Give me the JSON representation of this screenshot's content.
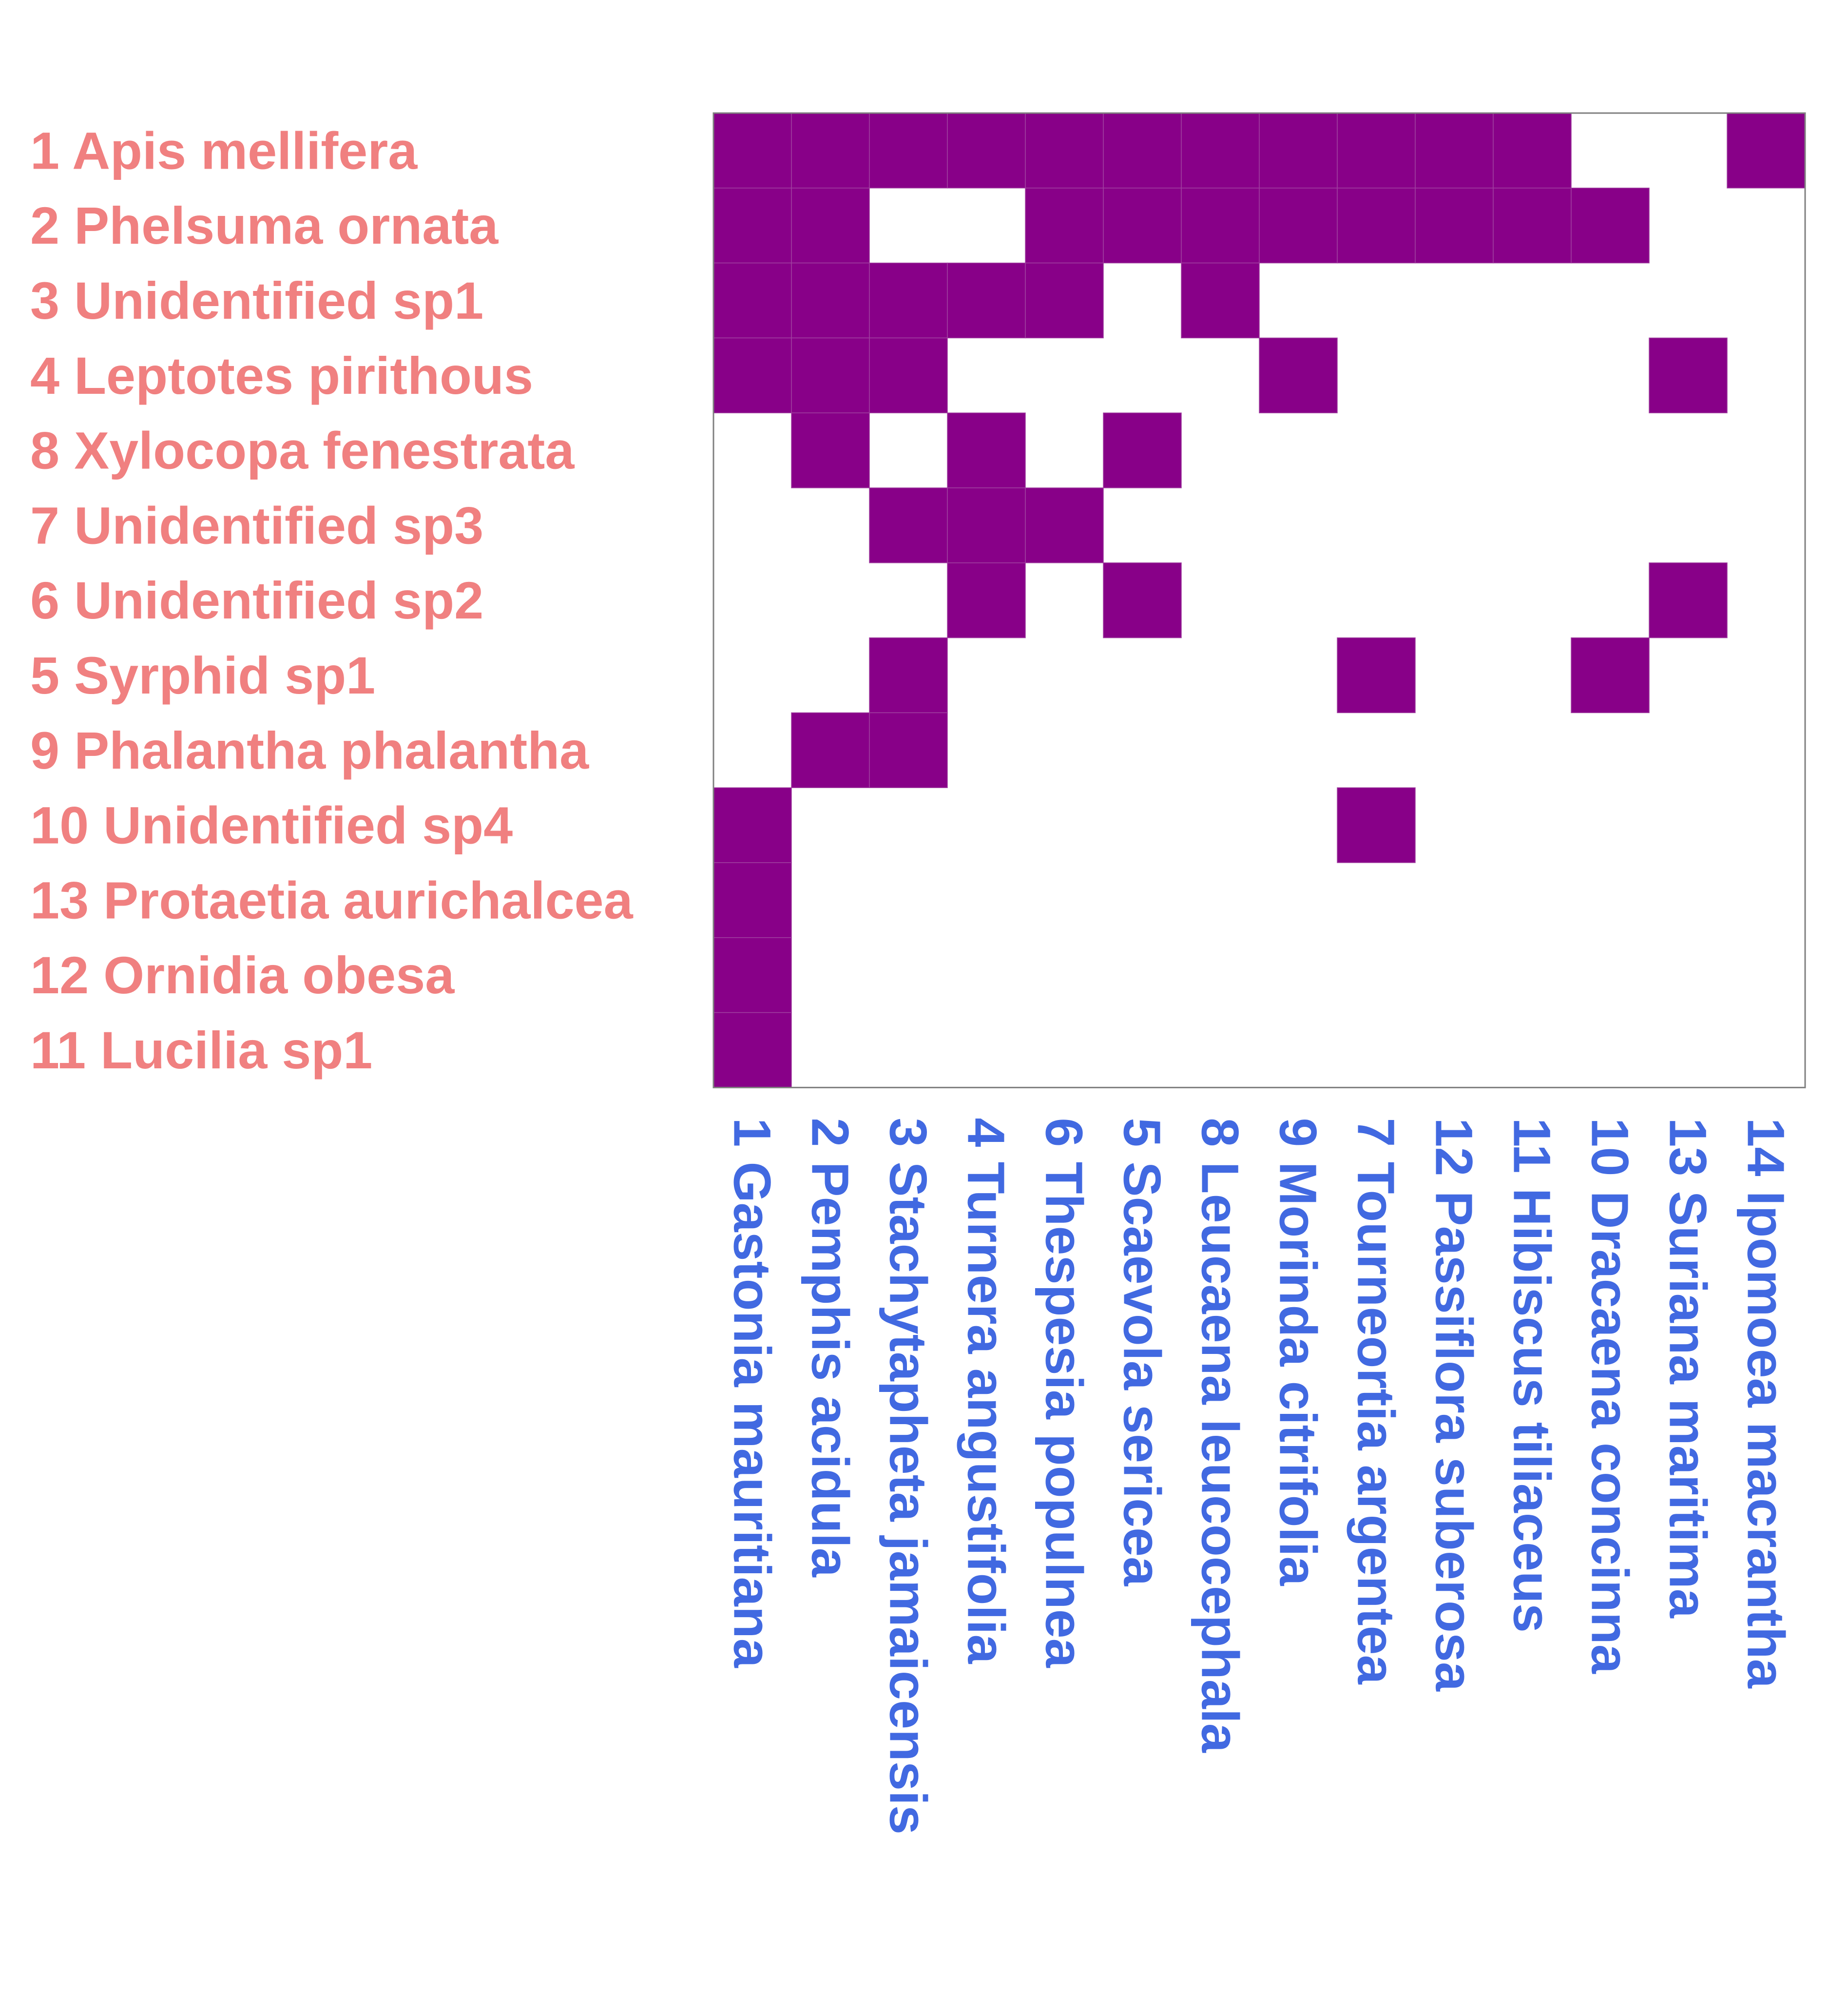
{
  "colors": {
    "cell_fill": "#880088",
    "cell_separator": "#a040a0",
    "row_label": "#f08080",
    "col_label": "#4169e1",
    "frame": "#7f7f7f",
    "background": "#ffffff"
  },
  "chart_data": {
    "type": "heatmap",
    "title": "",
    "xlabel": "",
    "ylabel": "",
    "grid": false,
    "rows": [
      "1 Apis mellifera",
      "2 Phelsuma ornata",
      "3 Unidentified sp1",
      "4 Leptotes pirithous",
      "8 Xylocopa fenestrata",
      "7 Unidentified sp3",
      "6 Unidentified sp2",
      "5 Syrphid sp1",
      "9 Phalantha phalantha",
      "10 Unidentified sp4",
      "13 Protaetia aurichalcea",
      "12 Ornidia obesa",
      "11 Lucilia sp1"
    ],
    "columns": [
      "1 Gastonia mauritiana",
      "2 Pemphis acidula",
      "3 Stachytapheta jamaicensis",
      "4 Turnera angustifolia",
      "6 Thespesia populnea",
      "5 Scaevola sericea",
      "8 Leucaena leucocephala",
      "9 Morinda citrifolia",
      "7 Tourneortia argentea",
      "12 Passiflora suberosa",
      "11 Hibiscus tiliaceus",
      "10 Dracaena concinna",
      "13 Suriana maritima",
      "14 Ipomoea macrantha"
    ],
    "matrix": [
      [
        1,
        1,
        1,
        1,
        1,
        1,
        1,
        1,
        1,
        1,
        1,
        0,
        0,
        1
      ],
      [
        1,
        1,
        0,
        0,
        1,
        1,
        1,
        1,
        1,
        1,
        1,
        1,
        0,
        0
      ],
      [
        1,
        1,
        1,
        1,
        1,
        0,
        1,
        0,
        0,
        0,
        0,
        0,
        0,
        0
      ],
      [
        1,
        1,
        1,
        0,
        0,
        0,
        0,
        1,
        0,
        0,
        0,
        0,
        1,
        0
      ],
      [
        0,
        1,
        0,
        1,
        0,
        1,
        0,
        0,
        0,
        0,
        0,
        0,
        0,
        0
      ],
      [
        0,
        0,
        1,
        1,
        1,
        0,
        0,
        0,
        0,
        0,
        0,
        0,
        0,
        0
      ],
      [
        0,
        0,
        0,
        1,
        0,
        1,
        0,
        0,
        0,
        0,
        0,
        0,
        1,
        0
      ],
      [
        0,
        0,
        1,
        0,
        0,
        0,
        0,
        0,
        1,
        0,
        0,
        1,
        0,
        0
      ],
      [
        0,
        1,
        1,
        0,
        0,
        0,
        0,
        0,
        0,
        0,
        0,
        0,
        0,
        0
      ],
      [
        1,
        0,
        0,
        0,
        0,
        0,
        0,
        0,
        1,
        0,
        0,
        0,
        0,
        0
      ],
      [
        1,
        0,
        0,
        0,
        0,
        0,
        0,
        0,
        0,
        0,
        0,
        0,
        0,
        0
      ],
      [
        1,
        0,
        0,
        0,
        0,
        0,
        0,
        0,
        0,
        0,
        0,
        0,
        0,
        0
      ],
      [
        1,
        0,
        0,
        0,
        0,
        0,
        0,
        0,
        0,
        0,
        0,
        0,
        0,
        0
      ]
    ]
  }
}
